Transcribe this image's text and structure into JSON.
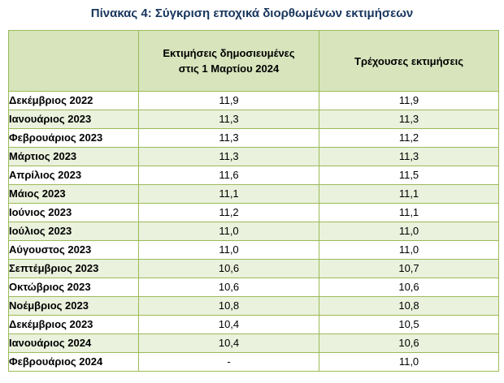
{
  "title": "Πίνακας 4: Σύγκριση εποχικά διορθωμένων εκτιμήσεων",
  "table": {
    "headers": [
      "",
      "Εκτιμήσεις δημοσιευμένες\nστις 1 Μαρτίου 2024",
      "Τρέχουσες εκτιμήσεις"
    ],
    "rows": [
      {
        "month": "Δεκέμβριος 2022",
        "published": "11,9",
        "current": "11,9"
      },
      {
        "month": "Ιανουάριος 2023",
        "published": "11,3",
        "current": "11,3"
      },
      {
        "month": "Φεβρουάριος 2023",
        "published": "11,3",
        "current": "11,2"
      },
      {
        "month": "Μάρτιος 2023",
        "published": "11,3",
        "current": "11,3"
      },
      {
        "month": "Απρίλιος 2023",
        "published": "11,6",
        "current": "11,5"
      },
      {
        "month": "Μάιος 2023",
        "published": "11,1",
        "current": "11,1"
      },
      {
        "month": "Ιούνιος 2023",
        "published": "11,2",
        "current": "11,1"
      },
      {
        "month": "Ιούλιος 2023",
        "published": "11,0",
        "current": "11,0"
      },
      {
        "month": "Αύγουστος 2023",
        "published": "11,0",
        "current": "11,0"
      },
      {
        "month": "Σεπτέμβριος 2023",
        "published": "10,6",
        "current": "10,7"
      },
      {
        "month": "Οκτώβριος 2023",
        "published": "10,6",
        "current": "10,6"
      },
      {
        "month": "Νοέμβριος 2023",
        "published": "10,8",
        "current": "10,8"
      },
      {
        "month": "Δεκέμβριος 2023",
        "published": "10,4",
        "current": "10,5"
      },
      {
        "month": "Ιανουάριος 2024",
        "published": "10,4",
        "current": "10,6"
      },
      {
        "month": "Φεβρουάριος 2024",
        "published": "-",
        "current": "11,0"
      }
    ]
  },
  "colors": {
    "header_bg": "#d7e4bc",
    "stripe_bg": "#eaf1dd",
    "border": "#9bbb59",
    "title": "#17365d"
  }
}
